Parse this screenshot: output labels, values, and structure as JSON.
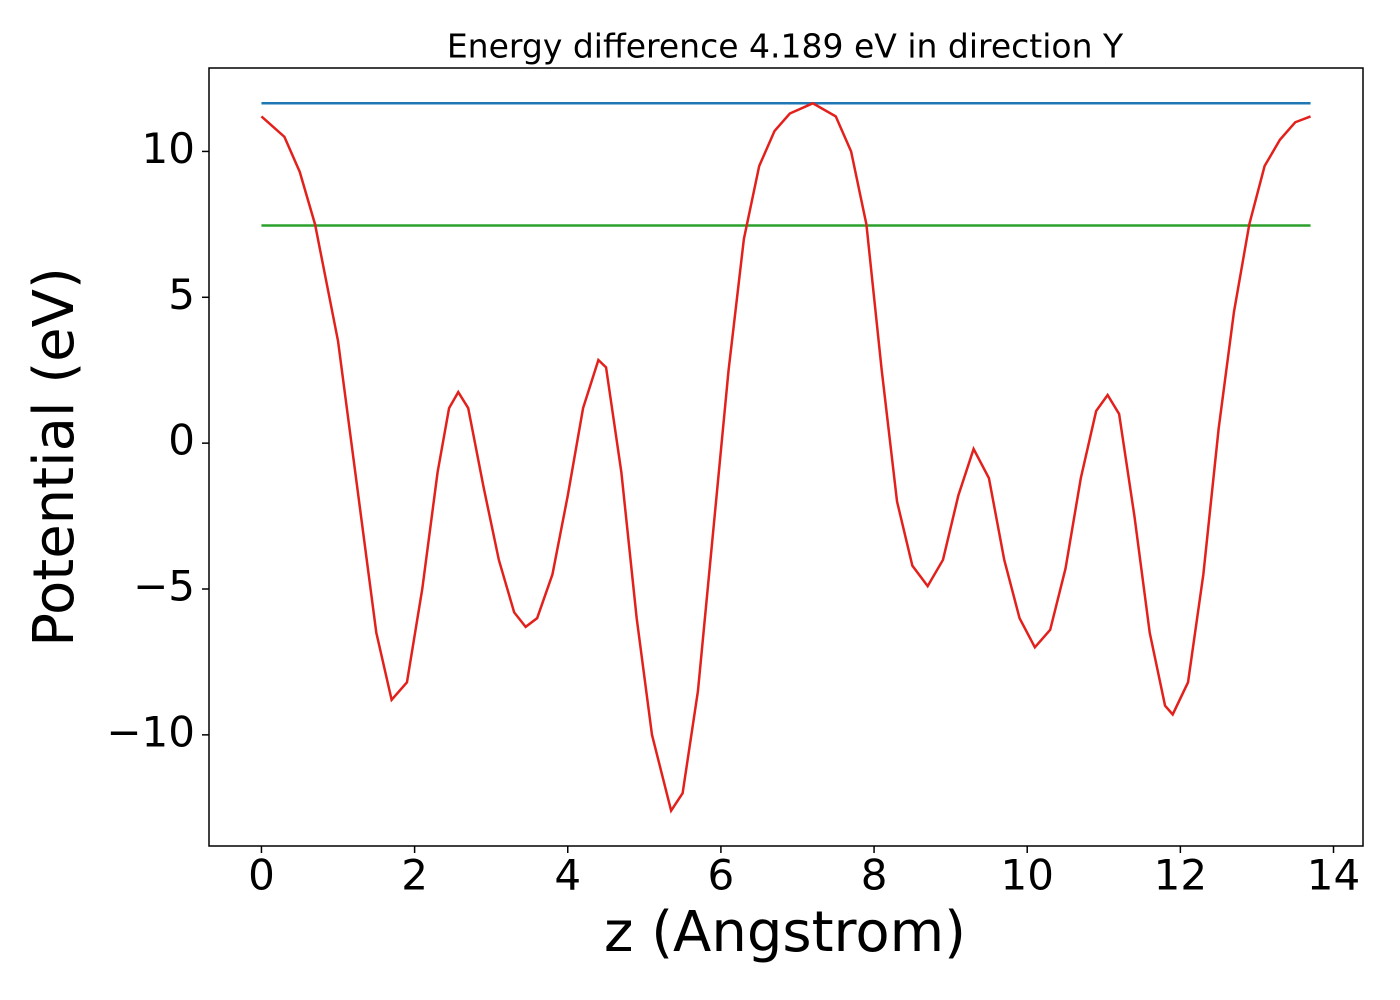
{
  "chart_data": {
    "type": "line",
    "title": "Energy difference 4.189 eV in direction Y",
    "xlabel": "z (Angstrom)",
    "ylabel": "Potential (eV)",
    "xlim": [
      -0.685,
      14.385
    ],
    "ylim": [
      -13.81,
      12.86
    ],
    "xticks": [
      0,
      2,
      4,
      6,
      8,
      10,
      12,
      14
    ],
    "yticks": [
      {
        "value": -10,
        "label": "−10"
      },
      {
        "value": -5,
        "label": "−5"
      },
      0,
      5,
      10
    ],
    "grid": false,
    "series": [
      {
        "color": "#e3211c",
        "x": [
          0,
          0.3,
          0.5,
          0.7,
          1.0,
          1.3,
          1.5,
          1.7,
          1.9,
          2.1,
          2.3,
          2.45,
          2.57,
          2.7,
          2.9,
          3.1,
          3.3,
          3.45,
          3.6,
          3.8,
          4.0,
          4.2,
          4.4,
          4.5,
          4.7,
          4.9,
          5.1,
          5.35,
          5.5,
          5.7,
          5.9,
          6.1,
          6.3,
          6.5,
          6.7,
          6.9,
          7.2,
          7.5,
          7.7,
          7.9,
          8.1,
          8.3,
          8.5,
          8.7,
          8.9,
          9.1,
          9.3,
          9.5,
          9.7,
          9.9,
          10.1,
          10.3,
          10.5,
          10.7,
          10.9,
          11.05,
          11.2,
          11.4,
          11.6,
          11.8,
          11.9,
          12.1,
          12.3,
          12.5,
          12.7,
          12.9,
          13.1,
          13.3,
          13.5,
          13.7
        ],
        "values": [
          11.2,
          10.5,
          9.3,
          7.5,
          3.5,
          -2.5,
          -6.5,
          -8.8,
          -8.2,
          -5,
          -1,
          1.2,
          1.75,
          1.2,
          -1.5,
          -4,
          -5.8,
          -6.3,
          -6,
          -4.5,
          -1.8,
          1.2,
          2.85,
          2.6,
          -1,
          -6,
          -10,
          -12.6,
          -12,
          -8.5,
          -3,
          2.5,
          7,
          9.5,
          10.7,
          11.3,
          11.65,
          11.2,
          10,
          7.5,
          2.5,
          -2,
          -4.2,
          -4.9,
          -4,
          -1.8,
          -0.2,
          -1.2,
          -4,
          -6,
          -7,
          -6.4,
          -4.3,
          -1.2,
          1.1,
          1.65,
          1,
          -2.5,
          -6.5,
          -9,
          -9.3,
          -8.2,
          -4.5,
          0.5,
          4.5,
          7.5,
          9.5,
          10.4,
          11,
          11.2
        ]
      },
      {
        "color": "#1f77b4",
        "x": [
          0,
          13.7
        ],
        "values": [
          11.65,
          11.65
        ]
      },
      {
        "color": "#2ca02c",
        "x": [
          0,
          13.7
        ],
        "values": [
          7.46,
          7.46
        ]
      }
    ]
  }
}
